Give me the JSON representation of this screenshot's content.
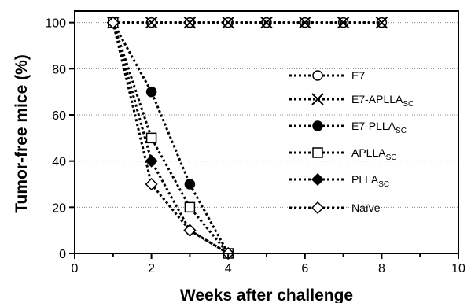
{
  "chart_data": {
    "type": "line",
    "xlabel": "Weeks after challenge",
    "ylabel": "Tumor-free mice (%)",
    "xlim": [
      0,
      10
    ],
    "ylim": [
      0,
      105
    ],
    "xticks": [
      0,
      2,
      4,
      6,
      8,
      10
    ],
    "yticks": [
      0,
      20,
      40,
      60,
      80,
      100
    ],
    "grid": "horizontal dotted",
    "legend_position": "right",
    "series": [
      {
        "name": "E7",
        "name_sub": "",
        "marker": "open-circle",
        "x": [
          1,
          2,
          3,
          4,
          5,
          6,
          7,
          8
        ],
        "y": [
          100,
          100,
          100,
          100,
          100,
          100,
          100,
          100
        ]
      },
      {
        "name": "E7-APLLA",
        "name_sub": "SC",
        "marker": "x",
        "x": [
          1,
          2,
          3,
          4,
          5,
          6,
          7,
          8
        ],
        "y": [
          100,
          100,
          100,
          100,
          100,
          100,
          100,
          100
        ]
      },
      {
        "name": "E7-PLLA",
        "name_sub": "SC",
        "marker": "filled-circle",
        "x": [
          1,
          2,
          3,
          4
        ],
        "y": [
          100,
          70,
          30,
          0
        ]
      },
      {
        "name": "APLLA",
        "name_sub": "SC",
        "marker": "open-square",
        "x": [
          1,
          2,
          3,
          4
        ],
        "y": [
          100,
          50,
          20,
          0
        ]
      },
      {
        "name": "PLLA",
        "name_sub": "SC",
        "marker": "filled-diamond",
        "x": [
          1,
          2,
          3,
          4
        ],
        "y": [
          100,
          40,
          10,
          0
        ]
      },
      {
        "name": "Naïve",
        "name_sub": "",
        "marker": "open-diamond",
        "x": [
          1,
          2,
          3,
          4
        ],
        "y": [
          100,
          30,
          10,
          0
        ]
      }
    ]
  }
}
